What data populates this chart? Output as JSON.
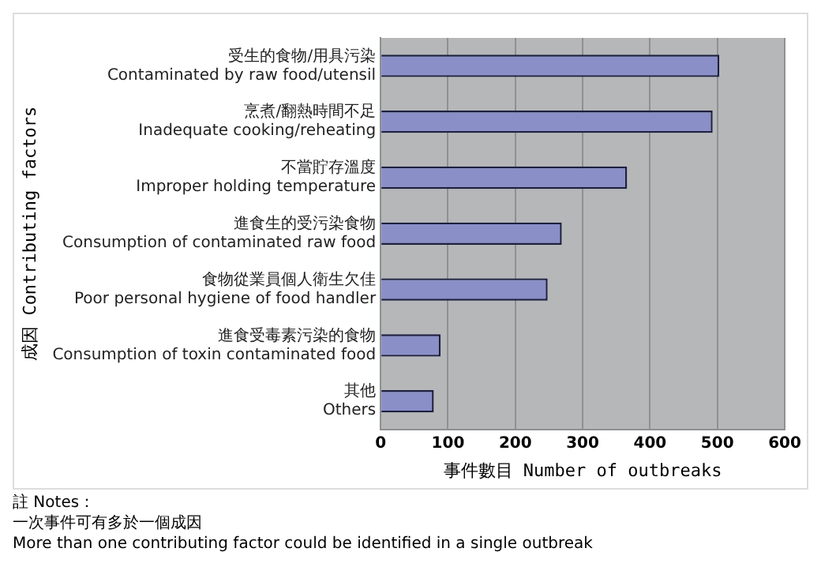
{
  "chart_data": {
    "type": "bar",
    "orientation": "horizontal",
    "xlabel": "事件數目 Number of outbreaks",
    "ylabel": "成因 Contributing factors",
    "categories": [
      "受生的食物/用具污染\nContaminated by raw food/utensil",
      "烹煮/翻熱時間不足\nInadequate cooking/reheating",
      "不當貯存溫度\nImproper holding temperature",
      "進食生的受污染食物\nConsumption of contaminated raw food",
      "食物從業員個人衛生欠佳\nPoor personal hygiene of food handler",
      "進食受毒素污染的食物\nConsumption of toxin contaminated food",
      "其他\nOthers"
    ],
    "values": [
      503,
      493,
      366,
      269,
      248,
      89,
      79
    ],
    "color": "#8a8fc8",
    "xlim": [
      0,
      600
    ],
    "xticks": [
      0,
      100,
      200,
      300,
      400,
      500,
      600
    ],
    "grid": "x",
    "legend": false,
    "annotations": [
      "註 Notes：",
      "一次事件可有多於一個成因",
      "More than one contributing factor could be identified in a single outbreak"
    ]
  }
}
